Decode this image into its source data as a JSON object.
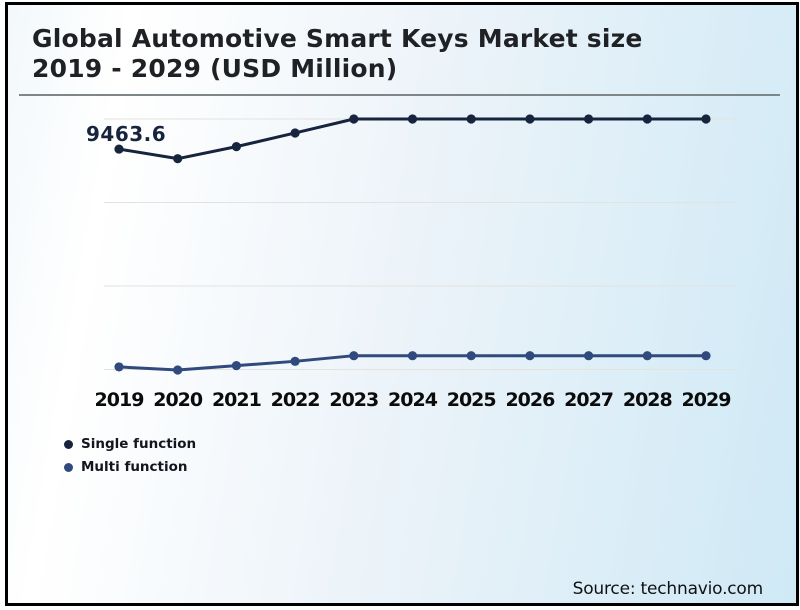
{
  "header": {
    "title_line1": "Global Automotive Smart Keys Market size",
    "title_line2": "2019 - 2029 (USD Million)"
  },
  "chart_data": {
    "type": "line",
    "title": "Global Automotive Smart Keys Market size 2019 - 2029 (USD Million)",
    "categories": [
      "2019",
      "2020",
      "2021",
      "2022",
      "2023",
      "2024",
      "2025",
      "2026",
      "2027",
      "2028",
      "2029"
    ],
    "series": [
      {
        "name": "Single function",
        "color": "#17243e",
        "values": [
          9463.6,
          9165,
          9540,
          9965,
          10400,
          10400,
          10400,
          10400,
          10400,
          10400,
          10400
        ]
      },
      {
        "name": "Multi function",
        "color": "#304a7d",
        "values": [
          2680,
          2585,
          2720,
          2855,
          3030,
          3030,
          3030,
          3030,
          3030,
          3030,
          3030
        ]
      }
    ],
    "point_label": {
      "text": "9463.6",
      "series": "Single function",
      "category": "2019"
    },
    "ylim": [
      2600,
      10400
    ],
    "gridline_values": [
      2600,
      5200,
      7800,
      10400
    ],
    "grid": "horizontal",
    "legend_position": "bottom-left"
  },
  "footer": {
    "source": "Source: technavio.com"
  },
  "colors": {
    "border": "#000000",
    "background_start": "#ffffff",
    "background_end": "#cfe9f6",
    "title_text": "#1f2125",
    "title_rule": "#7e868a",
    "gridline": "#e3e2df",
    "axis_label": "#0b0b0b",
    "source_text": "#111111"
  }
}
